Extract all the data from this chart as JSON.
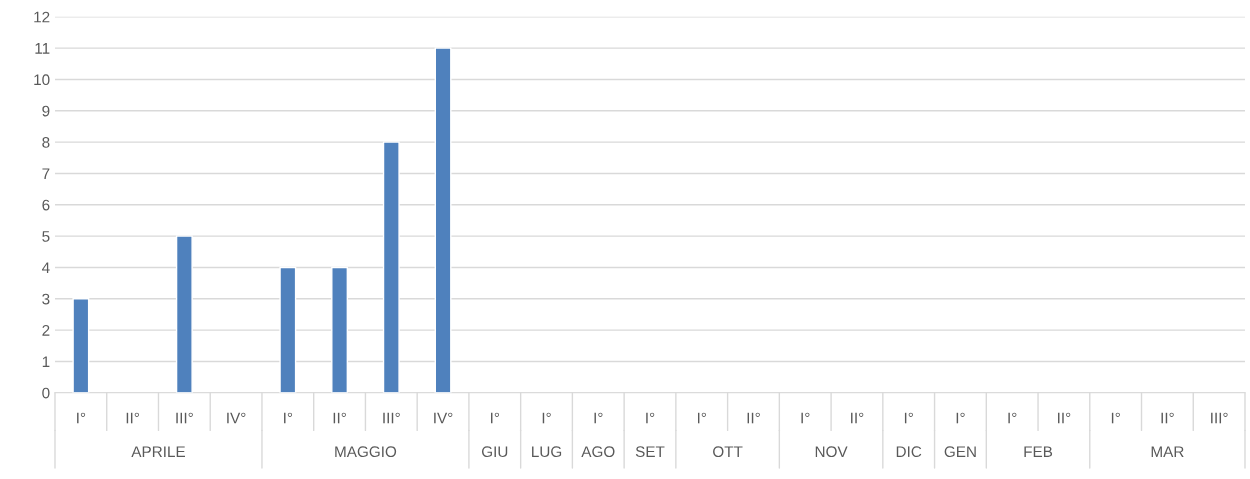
{
  "chart_data": {
    "type": "bar",
    "categories": [
      "I°",
      "II°",
      "III°",
      "IV°",
      "I°",
      "II°",
      "III°",
      "IV°",
      "I°",
      "I°",
      "I°",
      "I°",
      "I°",
      "II°",
      "I°",
      "II°",
      "I°",
      "I°",
      "I°",
      "II°",
      "I°",
      "II°",
      "III°"
    ],
    "annotations": [
      "APRILE",
      "MAGGIO",
      "GIU",
      "LUG",
      "AGO",
      "SET",
      "OTT",
      "NOV",
      "DIC",
      "GEN",
      "FEB",
      "MAR"
    ],
    "values": [
      3,
      null,
      5,
      null,
      4,
      4,
      8,
      11,
      null,
      null,
      null,
      null,
      null,
      null,
      null,
      null,
      null,
      null,
      null,
      null,
      null,
      null,
      null
    ],
    "color": "#4f81bd",
    "ylim": [
      0,
      12
    ],
    "yticks": [
      0,
      1,
      2,
      3,
      4,
      5,
      6,
      7,
      8,
      9,
      10,
      11,
      12
    ],
    "grid": "y",
    "legend": false
  }
}
